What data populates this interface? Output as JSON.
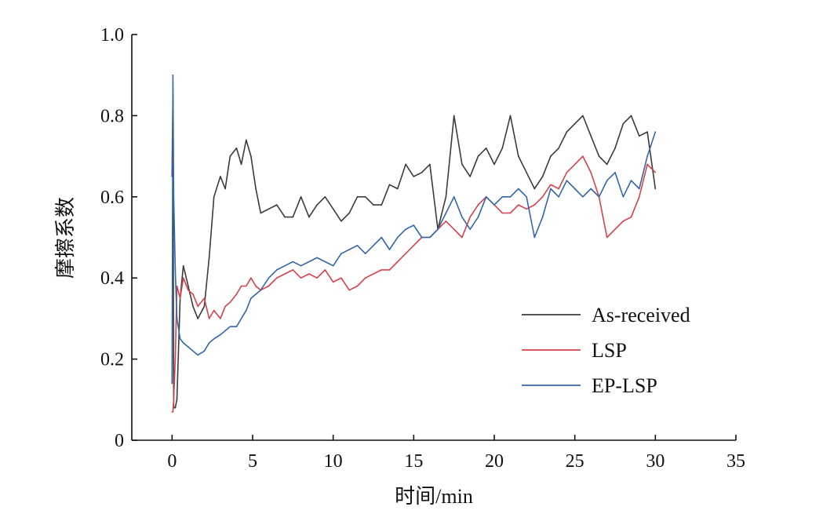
{
  "chart_data": {
    "type": "line",
    "xlabel": "时间/min",
    "ylabel": "摩擦系数",
    "xlim": [
      -2.5,
      35
    ],
    "ylim": [
      0,
      1.0
    ],
    "xticks": [
      0,
      5,
      10,
      15,
      20,
      25,
      30,
      35
    ],
    "yticks": [
      0,
      0.2,
      0.4,
      0.6,
      0.8,
      1.0
    ],
    "xtick_labels": [
      "0",
      "5",
      "10",
      "15",
      "20",
      "25",
      "30",
      "35"
    ],
    "ytick_labels": [
      "0",
      "0.2",
      "0.4",
      "0.6",
      "0.8",
      "1.0"
    ],
    "legend_position": "lower-right",
    "grid": false,
    "series": [
      {
        "name": "As-received",
        "color": "#3b3b3b",
        "x": [
          0,
          0.05,
          0.1,
          0.2,
          0.3,
          0.5,
          0.7,
          1.0,
          1.3,
          1.6,
          2.0,
          2.3,
          2.6,
          3.0,
          3.3,
          3.6,
          4.0,
          4.3,
          4.6,
          4.9,
          5.2,
          5.5,
          6.0,
          6.5,
          7.0,
          7.5,
          8.0,
          8.5,
          9.0,
          9.5,
          10.0,
          10.5,
          11.0,
          11.5,
          12.0,
          12.5,
          13.0,
          13.5,
          14.0,
          14.5,
          15.0,
          15.5,
          16.0,
          16.5,
          17.0,
          17.5,
          18.0,
          18.5,
          19.0,
          19.5,
          20.0,
          20.5,
          21.0,
          21.5,
          22.0,
          22.5,
          23.0,
          23.5,
          24.0,
          24.5,
          25.0,
          25.5,
          26.0,
          26.5,
          27.0,
          27.5,
          28.0,
          28.5,
          29.0,
          29.5,
          30.0
        ],
        "y": [
          0.65,
          0.85,
          0.08,
          0.08,
          0.1,
          0.35,
          0.43,
          0.38,
          0.33,
          0.3,
          0.33,
          0.45,
          0.6,
          0.65,
          0.62,
          0.7,
          0.72,
          0.68,
          0.74,
          0.7,
          0.62,
          0.56,
          0.57,
          0.58,
          0.55,
          0.55,
          0.6,
          0.55,
          0.58,
          0.6,
          0.57,
          0.54,
          0.56,
          0.6,
          0.6,
          0.58,
          0.58,
          0.63,
          0.62,
          0.68,
          0.65,
          0.66,
          0.68,
          0.52,
          0.6,
          0.8,
          0.68,
          0.65,
          0.7,
          0.72,
          0.68,
          0.72,
          0.8,
          0.7,
          0.66,
          0.62,
          0.65,
          0.7,
          0.72,
          0.76,
          0.78,
          0.8,
          0.75,
          0.7,
          0.68,
          0.72,
          0.78,
          0.8,
          0.75,
          0.76,
          0.62
        ]
      },
      {
        "name": "LSP",
        "color": "#d9404b",
        "x": [
          0,
          0.05,
          0.1,
          0.2,
          0.3,
          0.5,
          0.7,
          1.0,
          1.3,
          1.6,
          2.0,
          2.3,
          2.6,
          3.0,
          3.3,
          3.6,
          4.0,
          4.3,
          4.6,
          4.9,
          5.2,
          5.5,
          6.0,
          6.5,
          7.0,
          7.5,
          8.0,
          8.5,
          9.0,
          9.5,
          10.0,
          10.5,
          11.0,
          11.5,
          12.0,
          12.5,
          13.0,
          13.5,
          14.0,
          14.5,
          15.0,
          15.5,
          16.0,
          16.5,
          17.0,
          17.5,
          18.0,
          18.5,
          19.0,
          19.5,
          20.0,
          20.5,
          21.0,
          21.5,
          22.0,
          22.5,
          23.0,
          23.5,
          24.0,
          24.5,
          25.0,
          25.5,
          26.0,
          26.5,
          27.0,
          27.5,
          28.0,
          28.5,
          29.0,
          29.5,
          30.0
        ],
        "y": [
          0.07,
          0.07,
          0.1,
          0.2,
          0.38,
          0.35,
          0.4,
          0.37,
          0.36,
          0.33,
          0.35,
          0.3,
          0.32,
          0.3,
          0.33,
          0.34,
          0.36,
          0.38,
          0.38,
          0.4,
          0.38,
          0.37,
          0.38,
          0.4,
          0.41,
          0.42,
          0.4,
          0.41,
          0.4,
          0.42,
          0.39,
          0.4,
          0.37,
          0.38,
          0.4,
          0.41,
          0.42,
          0.42,
          0.44,
          0.46,
          0.48,
          0.5,
          0.5,
          0.52,
          0.54,
          0.52,
          0.5,
          0.55,
          0.58,
          0.6,
          0.58,
          0.56,
          0.56,
          0.58,
          0.57,
          0.58,
          0.6,
          0.63,
          0.62,
          0.66,
          0.68,
          0.7,
          0.66,
          0.6,
          0.5,
          0.52,
          0.54,
          0.55,
          0.6,
          0.68,
          0.66
        ]
      },
      {
        "name": "EP-LSP",
        "color": "#3366aa",
        "x": [
          0,
          0.05,
          0.1,
          0.2,
          0.3,
          0.5,
          0.7,
          1.0,
          1.3,
          1.6,
          2.0,
          2.3,
          2.6,
          3.0,
          3.3,
          3.6,
          4.0,
          4.3,
          4.6,
          4.9,
          5.2,
          5.5,
          6.0,
          6.5,
          7.0,
          7.5,
          8.0,
          8.5,
          9.0,
          9.5,
          10.0,
          10.5,
          11.0,
          11.5,
          12.0,
          12.5,
          13.0,
          13.5,
          14.0,
          14.5,
          15.0,
          15.5,
          16.0,
          16.5,
          17.0,
          17.5,
          18.0,
          18.5,
          19.0,
          19.5,
          20.0,
          20.5,
          21.0,
          21.5,
          22.0,
          22.5,
          23.0,
          23.5,
          24.0,
          24.5,
          25.0,
          25.5,
          26.0,
          26.5,
          27.0,
          27.5,
          28.0,
          28.5,
          29.0,
          29.5,
          30.0
        ],
        "y": [
          0.14,
          0.9,
          0.6,
          0.42,
          0.3,
          0.25,
          0.24,
          0.23,
          0.22,
          0.21,
          0.22,
          0.24,
          0.25,
          0.26,
          0.27,
          0.28,
          0.28,
          0.3,
          0.32,
          0.35,
          0.36,
          0.37,
          0.4,
          0.42,
          0.43,
          0.44,
          0.43,
          0.44,
          0.45,
          0.44,
          0.43,
          0.46,
          0.47,
          0.48,
          0.46,
          0.48,
          0.5,
          0.47,
          0.5,
          0.52,
          0.53,
          0.5,
          0.5,
          0.52,
          0.56,
          0.6,
          0.55,
          0.52,
          0.55,
          0.6,
          0.58,
          0.6,
          0.6,
          0.62,
          0.6,
          0.5,
          0.55,
          0.62,
          0.6,
          0.64,
          0.62,
          0.6,
          0.62,
          0.6,
          0.64,
          0.66,
          0.6,
          0.64,
          0.62,
          0.7,
          0.76
        ]
      }
    ]
  }
}
